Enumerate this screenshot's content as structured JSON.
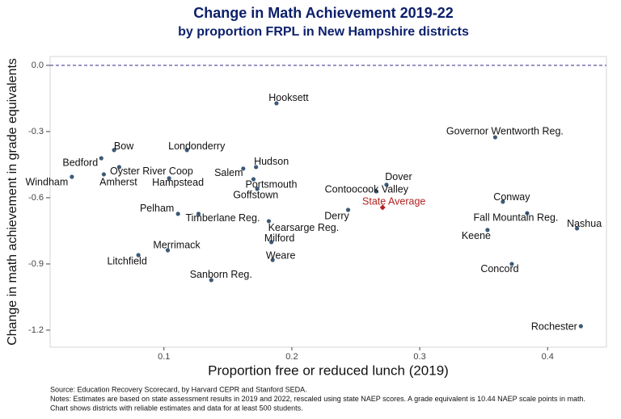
{
  "chart_data": {
    "type": "scatter",
    "title": "Change in Math Achievement 2019-22",
    "subtitle": "by proportion FRPL in New Hampshire districts",
    "x_label": "Proportion free or reduced lunch (2019)",
    "y_label": "Change in math achievement in grade equivalents",
    "point_labels": [
      "Hooksett",
      "Governor Wentworth Reg.",
      "Bow",
      "Londonderry",
      "Bedford",
      "Hudson",
      "Oyster River Coop",
      "Salem",
      "Windham",
      "Amherst",
      "Hampstead",
      "Portsmouth",
      "Goffstown",
      "Dover",
      "Contoocook Valley",
      "Conway",
      "Pelham",
      "Timberlane Reg.",
      "Derry",
      "Fall Mountain Reg.",
      "Nashua",
      "Kearsarge Reg.",
      "Keene",
      "Milford",
      "Merrimack",
      "Litchfield",
      "Weare",
      "Concord",
      "Sanborn Reg.",
      "Rochester"
    ],
    "x": [
      0.188,
      0.359,
      0.061,
      0.118,
      0.051,
      0.172,
      0.065,
      0.162,
      0.028,
      0.053,
      0.104,
      0.17,
      0.173,
      0.274,
      0.266,
      0.365,
      0.111,
      0.127,
      0.244,
      0.384,
      0.423,
      0.182,
      0.353,
      0.184,
      0.103,
      0.08,
      0.185,
      0.372,
      0.137,
      0.426
    ],
    "values": [
      -0.172,
      -0.326,
      -0.384,
      -0.384,
      -0.421,
      -0.461,
      -0.461,
      -0.468,
      -0.505,
      -0.494,
      -0.512,
      -0.516,
      -0.56,
      -0.541,
      -0.571,
      -0.618,
      -0.673,
      -0.673,
      -0.655,
      -0.67,
      -0.739,
      -0.706,
      -0.746,
      -0.801,
      -0.838,
      -0.86,
      -0.882,
      -0.9,
      -0.973,
      -1.182
    ],
    "color": "#3d5a78",
    "reference_point": {
      "label": "State Average",
      "x": 0.271,
      "y": -0.644,
      "color": "#b22222"
    },
    "hline": 0,
    "hline_color": "#4b3f99",
    "xlim": [
      0.011,
      0.446
    ],
    "xticks": [
      0.1,
      0.2,
      0.3,
      0.4
    ],
    "ylim": [
      -1.277,
      0.04
    ],
    "yticks": [
      {
        "value": 0,
        "label": "0.0"
      },
      -0.3,
      -0.6,
      -0.9,
      -1.2
    ],
    "notes": [
      "Source: Education Recovery Scorecard, by Harvard CEPR and Stanford SEDA.",
      "Notes: Estimates are based on state assessment results in 2019 and 2022, rescaled using state NAEP scores. A grade equivalent is 10.44 NAEP scale points in math.",
      "Chart shows districts with reliable estimates and data for at least 500 students."
    ]
  }
}
